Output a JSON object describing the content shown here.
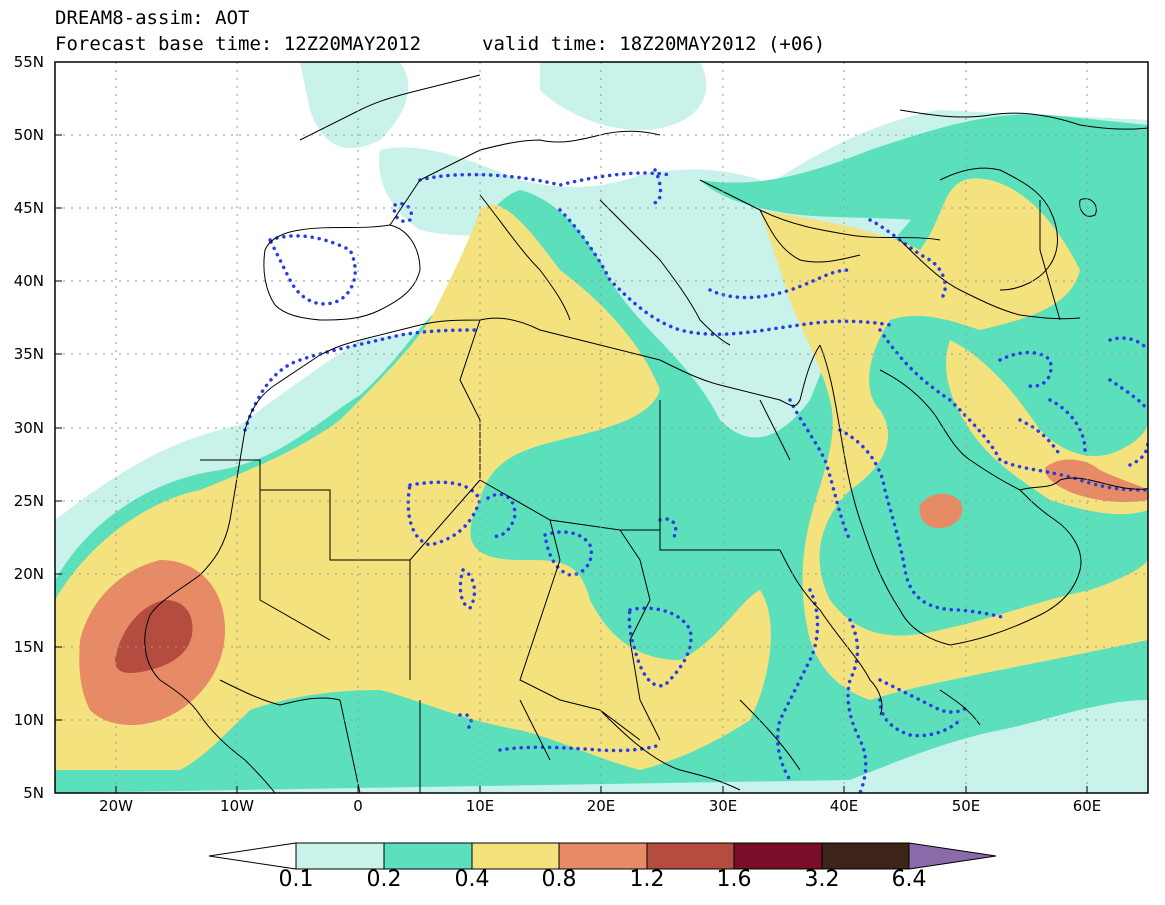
{
  "title": {
    "line1": "DREAM8-assim: AOT",
    "line2a": "Forecast base time: 12Z20MAY2012",
    "line2b": "valid time: 18Z20MAY2012 (+06)"
  },
  "map": {
    "variable": "AOT",
    "lon_range": [
      -25,
      65
    ],
    "lat_range": [
      5,
      55
    ],
    "lat_ticks": [
      "55N",
      "50N",
      "45N",
      "40N",
      "35N",
      "30N",
      "25N",
      "20N",
      "15N",
      "10N",
      "5N"
    ],
    "lon_ticks": [
      "20W",
      "10W",
      "0",
      "10E",
      "20E",
      "30E",
      "40E",
      "50E",
      "60E"
    ],
    "grid": "dotted",
    "overlay": "blue dotted contours (observations)"
  },
  "colorbar": {
    "levels": [
      "0.1",
      "0.2",
      "0.4",
      "0.8",
      "1.2",
      "1.6",
      "3.2",
      "6.4"
    ],
    "colors": [
      "#ffffff",
      "#c8f2ea",
      "#5ce0bc",
      "#f4e27e",
      "#e78a66",
      "#b44d40",
      "#7a0d2a",
      "#3c2418",
      "#8a6aa8"
    ]
  },
  "colors": {
    "c01": "#c8f2ea",
    "c02": "#5ce0bc",
    "c04": "#f4e27e",
    "c08": "#e78a66",
    "c12": "#b44d40",
    "obs": "#2a3ce6"
  }
}
